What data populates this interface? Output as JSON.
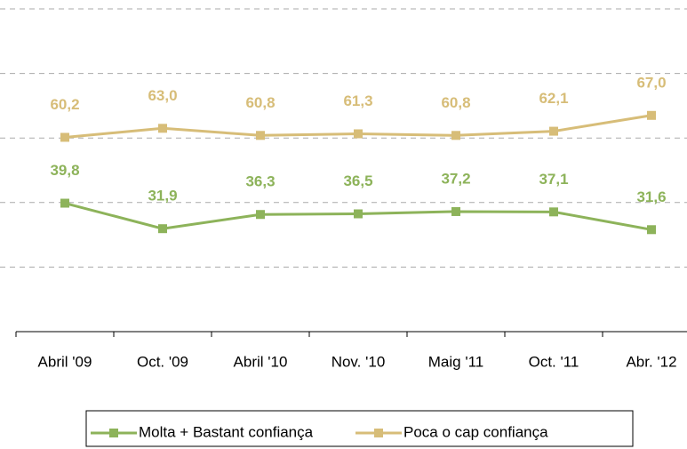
{
  "chart_data": {
    "type": "line",
    "categories": [
      "Abril '09",
      "Oct. '09",
      "Abril '10",
      "Nov. '10",
      "Maig '11",
      "Oct. '11",
      "Abr. '12"
    ],
    "series": [
      {
        "name": "Molta + Bastant confiança",
        "color": "#8db35a",
        "values": [
          39.8,
          31.9,
          36.3,
          36.5,
          37.2,
          37.1,
          31.6
        ],
        "value_labels": [
          "39,8",
          "31,9",
          "36,3",
          "36,5",
          "37,2",
          "37,1",
          "31,6"
        ]
      },
      {
        "name": "Poca o cap confiança",
        "color": "#d7bd78",
        "values": [
          60.2,
          63.0,
          60.8,
          61.3,
          60.8,
          62.1,
          67.0
        ],
        "value_labels": [
          "60,2",
          "63,0",
          "60,8",
          "61,3",
          "60,8",
          "62,1",
          "67,0"
        ]
      }
    ],
    "ylim": [
      0,
      100
    ],
    "yticks": [
      0,
      20,
      40,
      60,
      80,
      100
    ],
    "grid": true,
    "legend": "bottom"
  }
}
